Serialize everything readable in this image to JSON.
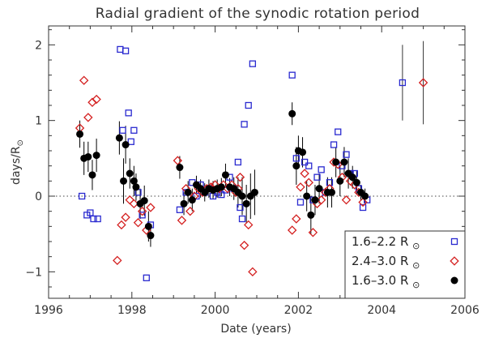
{
  "chart_data": {
    "type": "scatter",
    "title": "Radial gradient of the synodic rotation period",
    "xlabel": "Date (years)",
    "ylabel": "days/R",
    "ylabel_sub": "⊙",
    "xlim": [
      1996,
      2006
    ],
    "ylim": [
      -1.35,
      2.25
    ],
    "xticks": [
      1996,
      1998,
      2000,
      2002,
      2004,
      2006
    ],
    "xtick_labels": [
      "1996",
      "1998",
      "2000",
      "2002",
      "2004",
      "2006"
    ],
    "yticks": [
      -1,
      0,
      1,
      2
    ],
    "ytick_labels": [
      "−1",
      "0",
      "1",
      "2"
    ],
    "zero_line": true,
    "legend_position": "bottom-right",
    "series": [
      {
        "name": "1.6–2.2 R",
        "sub": "⊙",
        "marker": "open-square",
        "color": "#2a2ad0",
        "points": [
          [
            1996.8,
            0.0
          ],
          [
            1996.92,
            -0.25
          ],
          [
            1997.0,
            -0.22
          ],
          [
            1997.08,
            -0.3
          ],
          [
            1997.18,
            -0.3
          ],
          [
            1997.72,
            1.94
          ],
          [
            1997.85,
            1.92
          ],
          [
            1997.78,
            0.87
          ],
          [
            1997.92,
            1.1
          ],
          [
            1998.05,
            0.87
          ],
          [
            1997.98,
            0.72
          ],
          [
            1998.15,
            0.05
          ],
          [
            1998.25,
            -0.25
          ],
          [
            1998.35,
            -1.08
          ],
          [
            1998.45,
            -0.38
          ],
          [
            1999.15,
            -0.18
          ],
          [
            1999.3,
            0.05
          ],
          [
            1999.45,
            0.18
          ],
          [
            1999.55,
            0.0
          ],
          [
            1999.65,
            0.15
          ],
          [
            1999.75,
            0.05
          ],
          [
            1999.85,
            0.1
          ],
          [
            1999.95,
            0.0
          ],
          [
            2000.05,
            0.05
          ],
          [
            2000.15,
            0.02
          ],
          [
            2000.25,
            0.08
          ],
          [
            2000.35,
            0.25
          ],
          [
            2000.45,
            0.1
          ],
          [
            2000.55,
            0.45
          ],
          [
            2000.6,
            -0.15
          ],
          [
            2000.65,
            -0.3
          ],
          [
            2000.7,
            0.95
          ],
          [
            2000.8,
            1.2
          ],
          [
            2000.9,
            1.75
          ],
          [
            2001.85,
            1.6
          ],
          [
            2001.95,
            0.5
          ],
          [
            2002.05,
            -0.08
          ],
          [
            2002.15,
            0.45
          ],
          [
            2002.25,
            0.4
          ],
          [
            2002.35,
            -0.05
          ],
          [
            2002.45,
            0.25
          ],
          [
            2002.55,
            0.35
          ],
          [
            2002.65,
            0.05
          ],
          [
            2002.75,
            0.18
          ],
          [
            2002.85,
            0.68
          ],
          [
            2002.95,
            0.85
          ],
          [
            2003.05,
            0.4
          ],
          [
            2003.15,
            0.55
          ],
          [
            2003.25,
            0.3
          ],
          [
            2003.35,
            0.3
          ],
          [
            2003.45,
            0.1
          ],
          [
            2003.55,
            -0.15
          ],
          [
            2003.65,
            -0.05
          ],
          [
            2004.5,
            1.5
          ]
        ]
      },
      {
        "name": "2.4–3.0 R",
        "sub": "⊙",
        "marker": "open-diamond",
        "color": "#d42020",
        "points": [
          [
            1996.75,
            0.9
          ],
          [
            1996.85,
            1.53
          ],
          [
            1996.95,
            1.04
          ],
          [
            1997.05,
            1.24
          ],
          [
            1997.15,
            1.28
          ],
          [
            1997.65,
            -0.85
          ],
          [
            1997.75,
            -0.38
          ],
          [
            1997.85,
            -0.28
          ],
          [
            1997.95,
            -0.05
          ],
          [
            1998.05,
            -0.1
          ],
          [
            1998.15,
            -0.35
          ],
          [
            1998.25,
            -0.2
          ],
          [
            1998.35,
            -0.45
          ],
          [
            1998.45,
            -0.15
          ],
          [
            1999.1,
            0.47
          ],
          [
            1999.2,
            -0.32
          ],
          [
            1999.3,
            0.1
          ],
          [
            1999.4,
            -0.2
          ],
          [
            1999.5,
            0.0
          ],
          [
            1999.6,
            0.1
          ],
          [
            1999.7,
            0.05
          ],
          [
            1999.8,
            0.1
          ],
          [
            1999.9,
            0.12
          ],
          [
            2000.0,
            0.15
          ],
          [
            2000.1,
            0.1
          ],
          [
            2000.2,
            0.15
          ],
          [
            2000.3,
            0.1
          ],
          [
            2000.4,
            0.15
          ],
          [
            2000.5,
            0.05
          ],
          [
            2000.55,
            0.1
          ],
          [
            2000.6,
            0.25
          ],
          [
            2000.7,
            -0.65
          ],
          [
            2000.8,
            -0.38
          ],
          [
            2000.9,
            -1.0
          ],
          [
            2001.85,
            -0.45
          ],
          [
            2001.95,
            -0.3
          ],
          [
            2002.05,
            0.12
          ],
          [
            2002.15,
            0.3
          ],
          [
            2002.25,
            0.18
          ],
          [
            2002.35,
            -0.48
          ],
          [
            2002.45,
            -0.1
          ],
          [
            2002.55,
            -0.05
          ],
          [
            2002.65,
            0.05
          ],
          [
            2002.75,
            0.1
          ],
          [
            2002.85,
            0.45
          ],
          [
            2002.95,
            0.42
          ],
          [
            2003.05,
            0.25
          ],
          [
            2003.15,
            -0.05
          ],
          [
            2003.25,
            0.2
          ],
          [
            2003.35,
            0.15
          ],
          [
            2003.45,
            0.05
          ],
          [
            2003.55,
            -0.08
          ],
          [
            2005.0,
            1.5
          ]
        ]
      },
      {
        "name": "1.6–3.0 R",
        "sub": "⊙",
        "marker": "filled-circle",
        "color": "#000000",
        "points": [
          [
            1996.75,
            0.82,
            0.18
          ],
          [
            1996.85,
            0.5,
            0.22
          ],
          [
            1996.95,
            0.52,
            0.2
          ],
          [
            1997.05,
            0.28,
            0.2
          ],
          [
            1997.15,
            0.54,
            0.22
          ],
          [
            1997.7,
            0.77,
            0.22
          ],
          [
            1997.8,
            0.2,
            0.3
          ],
          [
            1997.85,
            0.68,
            0.25
          ],
          [
            1997.95,
            0.3,
            0.2
          ],
          [
            1998.05,
            0.2,
            0.2
          ],
          [
            1998.1,
            0.12,
            0.18
          ],
          [
            1998.2,
            -0.1,
            0.2
          ],
          [
            1998.3,
            -0.06,
            0.2
          ],
          [
            1998.4,
            -0.4,
            0.2
          ],
          [
            1998.45,
            -0.52,
            0.15
          ],
          [
            1999.15,
            0.38,
            0.15
          ],
          [
            1999.25,
            -0.1,
            0.15
          ],
          [
            1999.35,
            0.05,
            0.15
          ],
          [
            1999.45,
            -0.05,
            0.15
          ],
          [
            1999.55,
            0.15,
            0.12
          ],
          [
            1999.65,
            0.1,
            0.12
          ],
          [
            1999.75,
            0.05,
            0.12
          ],
          [
            1999.85,
            0.1,
            0.12
          ],
          [
            1999.95,
            0.08,
            0.12
          ],
          [
            2000.05,
            0.1,
            0.12
          ],
          [
            2000.15,
            0.12,
            0.12
          ],
          [
            2000.25,
            0.28,
            0.15
          ],
          [
            2000.35,
            0.12,
            0.12
          ],
          [
            2000.45,
            0.1,
            0.15
          ],
          [
            2000.55,
            0.05,
            0.2
          ],
          [
            2000.65,
            0.0,
            0.25
          ],
          [
            2000.75,
            -0.1,
            0.25
          ],
          [
            2000.85,
            0.0,
            0.3
          ],
          [
            2000.95,
            0.05,
            0.3
          ],
          [
            2001.85,
            1.09,
            0.15
          ],
          [
            2001.95,
            0.4,
            0.25
          ],
          [
            2002.0,
            0.6,
            0.2
          ],
          [
            2002.1,
            0.58,
            0.2
          ],
          [
            2002.2,
            0.0,
            0.2
          ],
          [
            2002.3,
            -0.25,
            0.25
          ],
          [
            2002.4,
            -0.05,
            0.2
          ],
          [
            2002.5,
            0.1,
            0.2
          ],
          [
            2002.7,
            0.05,
            0.2
          ],
          [
            2002.8,
            0.05,
            0.2
          ],
          [
            2002.9,
            0.45,
            0.2
          ],
          [
            2003.0,
            0.2,
            0.2
          ],
          [
            2003.1,
            0.45,
            0.2
          ],
          [
            2003.2,
            0.3,
            0.2
          ],
          [
            2003.3,
            0.25,
            0.15
          ],
          [
            2003.4,
            0.18,
            0.15
          ],
          [
            2003.5,
            0.05,
            0.1
          ],
          [
            2003.6,
            0.0,
            0.1
          ]
        ],
        "isolated_error_bars": [
          [
            2004.5,
            1.5,
            0.5
          ],
          [
            2005.0,
            1.5,
            0.55
          ]
        ]
      }
    ]
  }
}
